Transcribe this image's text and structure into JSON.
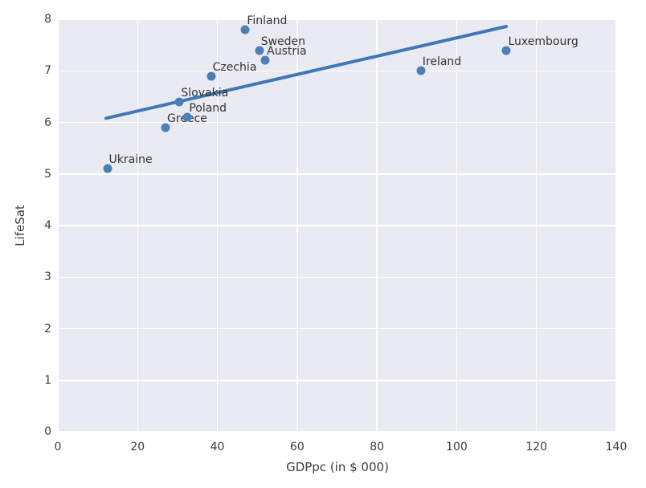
{
  "chart_data": {
    "type": "scatter",
    "title": "",
    "xlabel": "GDPpc (in $ 000)",
    "ylabel": "LifeSat",
    "xlim": [
      0,
      140
    ],
    "ylim": [
      0,
      8
    ],
    "xticks": [
      0,
      20,
      40,
      60,
      80,
      100,
      120,
      140
    ],
    "yticks": [
      0,
      1,
      2,
      3,
      4,
      5,
      6,
      7,
      8
    ],
    "grid": true,
    "legend": "none",
    "colors": {
      "plot_background": "#eaeaf2",
      "grid": "#ffffff",
      "point": "#4c7fb8",
      "trend_line": "#4178b4",
      "annotation_text": "#333333",
      "tick_text": "#3d3d3d",
      "figure_background": "#ffffff"
    },
    "points": [
      {
        "label": "Ukraine",
        "x": 12.4,
        "y": 5.1
      },
      {
        "label": "Greece",
        "x": 27.0,
        "y": 5.9
      },
      {
        "label": "Slovakia",
        "x": 30.5,
        "y": 6.4
      },
      {
        "label": "Poland",
        "x": 32.5,
        "y": 6.1
      },
      {
        "label": "Czechia",
        "x": 38.4,
        "y": 6.9
      },
      {
        "label": "Finland",
        "x": 47.0,
        "y": 7.8
      },
      {
        "label": "Sweden",
        "x": 50.5,
        "y": 7.4
      },
      {
        "label": "Austria",
        "x": 52.0,
        "y": 7.2
      },
      {
        "label": "Ireland",
        "x": 91.0,
        "y": 7.0
      },
      {
        "label": "Luxembourg",
        "x": 112.5,
        "y": 7.4
      }
    ],
    "trend_line": {
      "x1": 12.1,
      "y1": 6.08,
      "x2": 112.4,
      "y2": 7.86
    }
  }
}
